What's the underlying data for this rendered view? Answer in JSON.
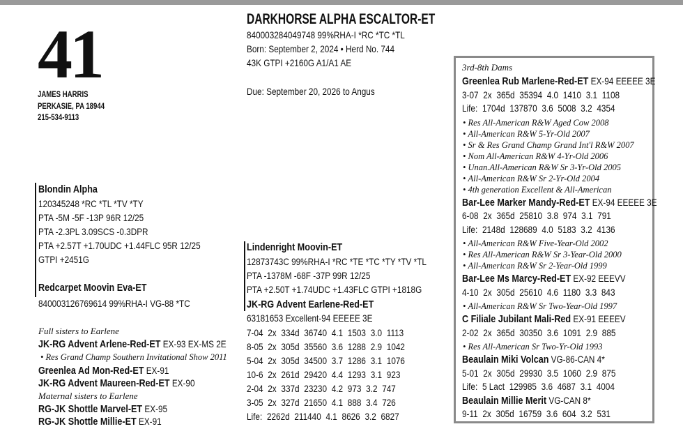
{
  "header": {
    "lot_number": "41",
    "consignor": [
      "JAMES HARRIS",
      "PERKASIE, PA 18944",
      "215-534-9113"
    ]
  },
  "animal": {
    "name": "DARKHORSE ALPHA ESCALTOR-ET",
    "lines": [
      "840003284049748 99%RHA-I *RC *TC *TL",
      "Born: September 2, 2024 • Herd No. 744",
      "43K GTPI +2160G A1/A1 AE"
    ],
    "due": "Due: September 20, 2026 to Angus"
  },
  "sire": {
    "name": "Blondin Alpha",
    "lines": [
      "120345248 *RC *TL *TV *TY",
      "PTA -5M -5F -13P 96R 12/25",
      "PTA -2.3PL 3.09SCS -0.3DPR",
      "PTA +2.57T +1.70UDC +1.44FLC 95R 12/25",
      "GTPI +2451G"
    ]
  },
  "sire_dam": {
    "name": "Redcarpet Moovin Eva-ET",
    "lines": [
      "840003126769614 99%RHA-I VG-88 *TC"
    ]
  },
  "sisters": [
    {
      "heading": "Full sisters to Earlene",
      "cows": [
        {
          "name": "JK-RG Advent Arlene-Red-ET",
          "classification": "EX-93 EX-MS 2E",
          "honors": [
            "Res Grand Champ Southern Invitational Show 2011"
          ]
        },
        {
          "name": "Greenlea Ad Mon-Red-ET",
          "classification": "EX-91"
        },
        {
          "name": "JK-RG Advent Maureen-Red-ET",
          "classification": "EX-90"
        }
      ]
    },
    {
      "heading": "Maternal sisters to Earlene",
      "cows": [
        {
          "name": "RG-JK Shottle Marvel-ET",
          "classification": "EX-95"
        },
        {
          "name": "RG-JK Shottle Millie-ET",
          "classification": "EX-91"
        }
      ]
    }
  ],
  "dam_sire": {
    "name": "Lindenright Moovin-ET",
    "lines": [
      "12873743C 99%RHA-I *RC *TE *TC *TY *TV *TL",
      "PTA -1378M -68F -37P 99R 12/25",
      "PTA +2.50T +1.74UDC +1.43FLC GTPI +1818G"
    ]
  },
  "dam": {
    "name": "JK-RG Advent Earlene-Red-ET",
    "classification": "63181653 Excellent-94 EEEEE 3E",
    "records": [
      [
        "7-04",
        "2x",
        "334d",
        "36740",
        "4.1",
        "1503",
        "3.0",
        "1113"
      ],
      [
        "8-05",
        "2x",
        "305d",
        "35560",
        "3.6",
        "1288",
        "2.9",
        "1042"
      ],
      [
        "5-04",
        "2x",
        "305d",
        "34500",
        "3.7",
        "1286",
        "3.1",
        "1076"
      ],
      [
        "10-6",
        "2x",
        "261d",
        "29420",
        "4.4",
        "1293",
        "3.1",
        "923"
      ],
      [
        "2-04",
        "2x",
        "337d",
        "23230",
        "4.2",
        "973",
        "3.2",
        "747"
      ],
      [
        "3-05",
        "2x",
        "327d",
        "21650",
        "4.1",
        "888",
        "3.4",
        "726"
      ],
      [
        "Life:",
        "2262d",
        "211440",
        "4.1",
        "8626",
        "3.2",
        "6827"
      ]
    ]
  },
  "ancestors": {
    "heading": "3rd-8th Dams",
    "dams": [
      {
        "name": "Greenlea Rub Marlene-Red-ET",
        "classification": "EX-94 EEEEE 3E",
        "records": [
          [
            "3-07",
            "2x",
            "365d",
            "35394",
            "4.0",
            "1410",
            "3.1",
            "1108"
          ],
          [
            "Life:",
            "1704d",
            "137870",
            "3.6",
            "5008",
            "3.2",
            "4354"
          ]
        ],
        "honors": [
          "Res All-American R&W Aged Cow 2008",
          "All-American R&W 5-Yr-Old 2007",
          "Sr & Res Grand Champ Grand Int'l R&W 2007",
          "Nom All-American R&W 4-Yr-Old 2006",
          "Unan.All-American R&W Sr 3-Yr-Old 2005",
          "All-American R&W Sr 2-Yr-Old 2004",
          "4th generation Excellent & All-American"
        ]
      },
      {
        "name": "Bar-Lee Marker Mandy-Red-ET",
        "classification": "EX-94 EEEEE 3E",
        "records": [
          [
            "6-08",
            "2x",
            "365d",
            "25810",
            "3.8",
            "974",
            "3.1",
            "791"
          ],
          [
            "Life:",
            "2148d",
            "128689",
            "4.0",
            "5183",
            "3.2",
            "4136"
          ]
        ],
        "honors": [
          "All-American R&W Five-Year-Old 2002",
          "Res All-American R&W Sr 3-Year-Old 2000",
          "All-American R&W Sr 2-Year-Old 1999"
        ]
      },
      {
        "name": "Bar-Lee Ms Marcy-Red-ET",
        "classification": "EX-92 EEEVV",
        "records": [
          [
            "4-10",
            "2x",
            "305d",
            "25610",
            "4.6",
            "1180",
            "3.3",
            "843"
          ]
        ],
        "honors": [
          "All-American R&W Sr Two-Year-Old 1997"
        ]
      },
      {
        "name": "C Filiale Jubilant Mali-Red",
        "classification": "EX-91 EEEEV",
        "records": [
          [
            "2-02",
            "2x",
            "365d",
            "30350",
            "3.6",
            "1091",
            "2.9",
            "885"
          ]
        ],
        "honors": [
          "Res All-American Sr Two-Yr-Old 1993"
        ]
      },
      {
        "name": "Beaulain Miki Volcan",
        "classification": "VG-86-CAN 4*",
        "records": [
          [
            "5-01",
            "2x",
            "305d",
            "29930",
            "3.5",
            "1060",
            "2.9",
            "875"
          ],
          [
            "Life:",
            "5 Lact",
            "129985",
            "3.6",
            "4687",
            "3.1",
            "4004"
          ]
        ]
      },
      {
        "name": "Beaulain Millie Merit",
        "classification": "VG-CAN 8*",
        "records": [
          [
            "9-11",
            "2x",
            "305d",
            "16759",
            "3.6",
            "604",
            "3.2",
            "531"
          ]
        ]
      }
    ]
  }
}
